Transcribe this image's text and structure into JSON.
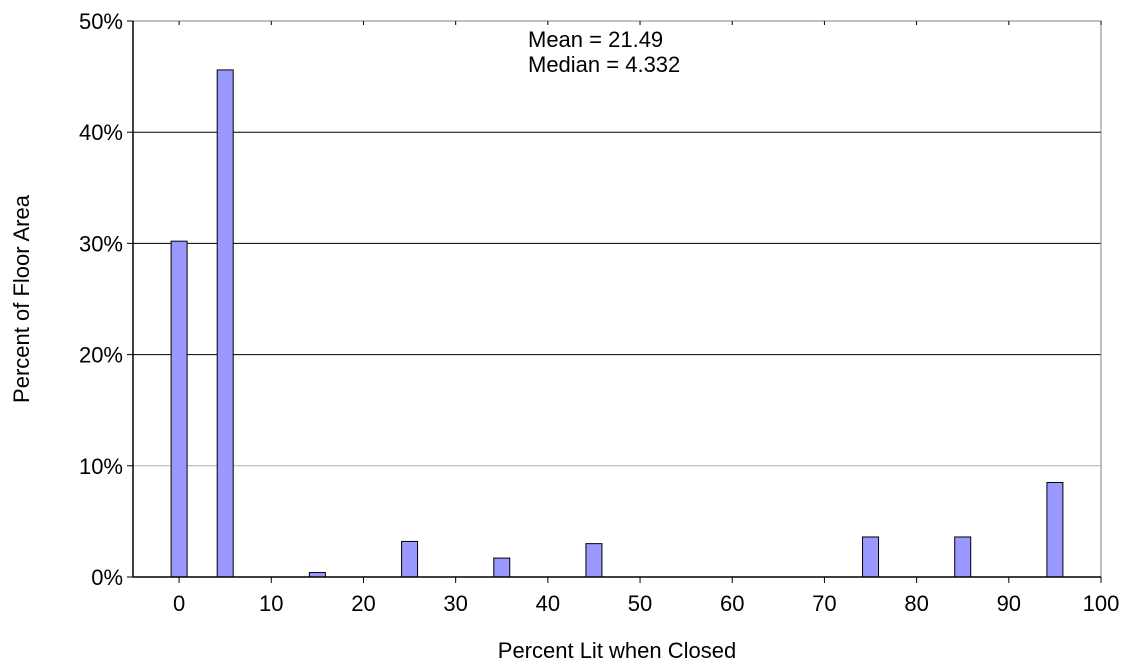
{
  "chart_data": {
    "type": "bar",
    "title": "",
    "xlabel": "Percent Lit when Closed",
    "ylabel": "Percent of Floor Area",
    "xlim": [
      -5,
      100
    ],
    "ylim": [
      0,
      50
    ],
    "x_ticks": [
      0,
      10,
      20,
      30,
      40,
      50,
      60,
      70,
      80,
      90,
      100
    ],
    "y_ticks": [
      0,
      10,
      20,
      30,
      40,
      50
    ],
    "y_tick_suffix": "%",
    "grid": {
      "y": true,
      "x": false
    },
    "annotations": [
      "Mean = 21.49",
      "Median = 4.332"
    ],
    "bar_color": "#9999ff",
    "bar_edge_color": "#000000",
    "x": [
      0,
      5,
      15,
      25,
      35,
      45,
      75,
      85,
      95
    ],
    "values": [
      30.2,
      45.6,
      0.4,
      3.2,
      1.7,
      3.0,
      3.6,
      3.6,
      8.5
    ]
  }
}
